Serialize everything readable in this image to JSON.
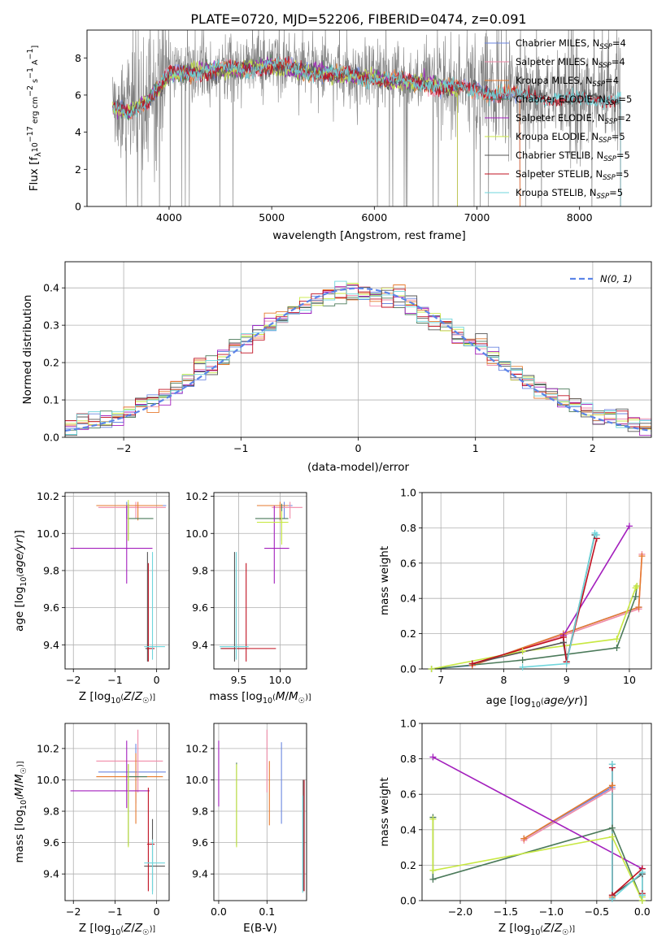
{
  "figure_title": "PLATE=0720, MJD=52206, FIBERID=0474, z=0.091",
  "colors": {
    "Chabrier MILES": "#6b86e0",
    "Salpeter MILES": "#f08aa8",
    "Kroupa MILES": "#e67a2e",
    "Chabrier ELODIE": "#4b7a5a",
    "Salpeter ELODIE": "#a31fbd",
    "Kroupa ELODIE": "#c8e843",
    "Chabrier STELIB": "#555555",
    "Salpeter STELIB": "#c01020",
    "Kroupa STELIB": "#6fd6dc",
    "data": "#808080",
    "normal": "#5b84e8"
  },
  "chart_data": [
    {
      "id": "spectrum",
      "type": "line",
      "title": "PLATE=0720, MJD=52206, FIBERID=0474, z=0.091",
      "xlabel": "wavelength [Angstrom, rest frame]",
      "ylabel": "Flux [f_λ10^-17 erg cm^-2 s^-1 A^-1]",
      "xlim": [
        3200,
        8700
      ],
      "ylim": [
        0,
        9.5
      ],
      "xticks": [
        4000,
        5000,
        6000,
        7000,
        8000
      ],
      "yticks": [
        0,
        2,
        4,
        6,
        8
      ],
      "grid": false,
      "legend_position": "right",
      "legend": [
        {
          "text": "Chabrier MILES, N",
          "sub": "SSP",
          "tail": "=4"
        },
        {
          "text": "Salpeter MILES, N",
          "sub": "SSP",
          "tail": "=4"
        },
        {
          "text": "Kroupa MILES, N",
          "sub": "SSP",
          "tail": "=4"
        },
        {
          "text": "Chabrier ELODIE, N",
          "sub": "SSP",
          "tail": "=5"
        },
        {
          "text": "Salpeter ELODIE, N",
          "sub": "SSP",
          "tail": "=2"
        },
        {
          "text": "Kroupa ELODIE, N",
          "sub": "SSP",
          "tail": "=5"
        },
        {
          "text": "Chabrier STELIB, N",
          "sub": "SSP",
          "tail": "=5"
        },
        {
          "text": "Salpeter STELIB, N",
          "sub": "SSP",
          "tail": "=5"
        },
        {
          "text": "Kroupa STELIB, N",
          "sub": "SSP",
          "tail": "=5"
        }
      ],
      "continuum": [
        [
          3450,
          5.5
        ],
        [
          3600,
          5.2
        ],
        [
          3800,
          5.9
        ],
        [
          4000,
          7.3
        ],
        [
          4300,
          7.5
        ],
        [
          4700,
          7.6
        ],
        [
          5000,
          7.8
        ],
        [
          5300,
          7.5
        ],
        [
          5600,
          7.35
        ],
        [
          6000,
          7.1
        ],
        [
          6300,
          6.95
        ],
        [
          6600,
          6.7
        ],
        [
          7000,
          6.45
        ],
        [
          7400,
          6.15
        ],
        [
          7800,
          6.0
        ],
        [
          8100,
          5.9
        ],
        [
          8400,
          6.0
        ]
      ],
      "model_range": {
        "MILES": [
          3450,
          7420
        ],
        "ELODIE": [
          3450,
          6810
        ],
        "STELIB": [
          3450,
          8400
        ]
      },
      "data_range": [
        3450,
        8400
      ]
    },
    {
      "id": "residuals",
      "type": "histogram",
      "xlabel": "(data-model)/error",
      "ylabel": "Normed distribution",
      "xlim": [
        -2.5,
        2.5
      ],
      "ylim": [
        0,
        0.47
      ],
      "xticks": [
        -2,
        -1,
        0,
        1,
        2
      ],
      "yticks": [
        0.0,
        0.1,
        0.2,
        0.3,
        0.4
      ],
      "grid": true,
      "legend_position": "top-right",
      "normal_curve": {
        "label": "N(0, 1)",
        "mean": 0,
        "sigma": 1
      },
      "bins": 50
    },
    {
      "id": "age-vs-Z",
      "type": "errorbar",
      "xlabel": "Z [log10(Z/Z☉)]",
      "ylabel": "age [log10(age/yr)]",
      "xlim": [
        -2.2,
        0.3
      ],
      "ylim": [
        9.27,
        10.22
      ],
      "xticks": [
        -2,
        -1,
        0
      ],
      "yticks": [
        9.4,
        9.6,
        9.8,
        10.0,
        10.2
      ],
      "grid": true,
      "series": [
        {
          "model": "Chabrier MILES",
          "x": -0.72,
          "xerr": [
            0.72,
            0.95
          ],
          "y": 10.15,
          "yerr": [
            0.07,
            0.02
          ]
        },
        {
          "model": "Salpeter MILES",
          "x": -0.5,
          "xerr": [
            0.9,
            0.72
          ],
          "y": 10.14,
          "yerr": [
            0.06,
            0.03
          ]
        },
        {
          "model": "Kroupa MILES",
          "x": -0.45,
          "xerr": [
            1.0,
            0.6
          ],
          "y": 10.15,
          "yerr": [
            0.08,
            0.02
          ]
        },
        {
          "model": "Chabrier ELODIE",
          "x": -0.68,
          "xerr": [
            0.02,
            0.6
          ],
          "y": 10.08,
          "yerr": [
            0.12,
            0.08
          ]
        },
        {
          "model": "Salpeter ELODIE",
          "x": -0.72,
          "xerr": [
            1.35,
            0.62
          ],
          "y": 9.92,
          "yerr": [
            0.19,
            0.23
          ]
        },
        {
          "model": "Kroupa ELODIE",
          "x": -0.68,
          "xerr": [
            0.02,
            0.0
          ],
          "y": 10.08,
          "yerr": [
            0.12,
            0.1
          ]
        },
        {
          "model": "Chabrier STELIB",
          "x": -0.22,
          "xerr": [
            0.05,
            0.05
          ],
          "y": 9.38,
          "yerr": [
            0.07,
            0.52
          ]
        },
        {
          "model": "Salpeter STELIB",
          "x": -0.2,
          "xerr": [
            0.03,
            0.15
          ],
          "y": 9.38,
          "yerr": [
            0.07,
            0.46
          ]
        },
        {
          "model": "Kroupa STELIB",
          "x": -0.1,
          "xerr": [
            0.2,
            0.3
          ],
          "y": 9.39,
          "yerr": [
            0.07,
            0.51
          ]
        }
      ]
    },
    {
      "id": "age-vs-mass",
      "type": "errorbar",
      "xlabel": "mass [log10(M/M☉)]",
      "ylabel": "",
      "xlim": [
        9.2,
        10.32
      ],
      "ylim": [
        9.27,
        10.22
      ],
      "xticks": [
        9.5,
        10.0
      ],
      "yticks": [
        9.4,
        9.6,
        9.8,
        10.0,
        10.2
      ],
      "grid": true,
      "series": [
        {
          "model": "Chabrier MILES",
          "x": 10.05,
          "xerr": [
            0.22,
            0.1
          ],
          "y": 10.15,
          "yerr": [
            0.07,
            0.02
          ]
        },
        {
          "model": "Salpeter MILES",
          "x": 10.12,
          "xerr": [
            0.22,
            0.15
          ],
          "y": 10.14,
          "yerr": [
            0.06,
            0.03
          ]
        },
        {
          "model": "Kroupa MILES",
          "x": 10.0,
          "xerr": [
            0.28,
            0.1
          ],
          "y": 10.15,
          "yerr": [
            0.08,
            0.02
          ]
        },
        {
          "model": "Chabrier ELODIE",
          "x": 10.02,
          "xerr": [
            0.32,
            0.08
          ],
          "y": 10.08,
          "yerr": [
            0.12,
            0.08
          ]
        },
        {
          "model": "Salpeter ELODIE",
          "x": 9.93,
          "xerr": [
            0.12,
            0.18
          ],
          "y": 9.92,
          "yerr": [
            0.19,
            0.23
          ]
        },
        {
          "model": "Kroupa ELODIE",
          "x": 10.02,
          "xerr": [
            0.3,
            0.08
          ],
          "y": 10.06,
          "yerr": [
            0.12,
            0.06
          ]
        },
        {
          "model": "Chabrier STELIB",
          "x": 9.45,
          "xerr": [
            0.17,
            0.12
          ],
          "y": 9.38,
          "yerr": [
            0.07,
            0.52
          ]
        },
        {
          "model": "Salpeter STELIB",
          "x": 9.59,
          "xerr": [
            0.3,
            0.36
          ],
          "y": 9.38,
          "yerr": [
            0.07,
            0.46
          ]
        },
        {
          "model": "Kroupa STELIB",
          "x": 9.47,
          "xerr": [
            0.2,
            0.15
          ],
          "y": 9.39,
          "yerr": [
            0.07,
            0.51
          ]
        }
      ]
    },
    {
      "id": "weight-vs-age",
      "type": "line",
      "xlabel": "age [log10(age/yr)]",
      "ylabel": "mass weight",
      "xlim": [
        6.7,
        10.35
      ],
      "ylim": [
        0,
        1.0
      ],
      "xticks": [
        7,
        8,
        9,
        10
      ],
      "yticks": [
        0.0,
        0.2,
        0.4,
        0.6,
        0.8,
        1.0
      ],
      "grid": true,
      "series": [
        {
          "model": "Chabrier MILES",
          "x": [
            6.85,
            7.5,
            8.95,
            10.15
          ],
          "y": [
            0.0,
            0.02,
            0.2,
            0.35
          ]
        },
        {
          "model": "Salpeter MILES",
          "x": [
            7.5,
            8.95,
            10.15,
            10.2
          ],
          "y": [
            0.02,
            0.19,
            0.34,
            0.65
          ]
        },
        {
          "model": "Kroupa MILES",
          "x": [
            7.5,
            8.95,
            10.15,
            10.2
          ],
          "y": [
            0.02,
            0.2,
            0.35,
            0.64
          ]
        },
        {
          "model": "Chabrier ELODIE",
          "x": [
            6.85,
            8.3,
            9.8,
            10.1,
            10.12
          ],
          "y": [
            0.0,
            0.05,
            0.12,
            0.41,
            0.47
          ]
        },
        {
          "model": "Salpeter ELODIE",
          "x": [
            8.95,
            10.0
          ],
          "y": [
            0.19,
            0.81
          ]
        },
        {
          "model": "Kroupa ELODIE",
          "x": [
            6.85,
            8.3,
            9.8,
            10.1,
            10.12
          ],
          "y": [
            0.0,
            0.1,
            0.17,
            0.46,
            0.47
          ]
        },
        {
          "model": "Chabrier STELIB",
          "x": [
            7.5,
            8.95,
            9.0,
            9.45
          ],
          "y": [
            0.03,
            0.15,
            0.04,
            0.76
          ]
        },
        {
          "model": "Salpeter STELIB",
          "x": [
            7.5,
            8.95,
            9.0,
            9.48
          ],
          "y": [
            0.03,
            0.18,
            0.04,
            0.74
          ]
        },
        {
          "model": "Kroupa STELIB",
          "x": [
            8.3,
            9.0,
            9.45,
            9.48
          ],
          "y": [
            0.01,
            0.03,
            0.77,
            0.76
          ]
        }
      ]
    },
    {
      "id": "mass-vs-Z",
      "type": "errorbar",
      "xlabel": "Z [log10(Z/Z☉)]",
      "ylabel": "mass [log10(M/M☉)]",
      "xlim": [
        -2.2,
        0.3
      ],
      "ylim": [
        9.23,
        10.36
      ],
      "xticks": [
        -2,
        -1,
        0
      ],
      "yticks": [
        9.4,
        9.6,
        9.8,
        10.0,
        10.2
      ],
      "grid": true,
      "series": [
        {
          "model": "Chabrier MILES",
          "x": -0.5,
          "xerr": [
            0.9,
            0.72
          ],
          "y": 10.05,
          "yerr": [
            0.2,
            0.18
          ]
        },
        {
          "model": "Salpeter MILES",
          "x": -0.45,
          "xerr": [
            1.0,
            0.6
          ],
          "y": 10.12,
          "yerr": [
            0.2,
            0.2
          ]
        },
        {
          "model": "Kroupa MILES",
          "x": -0.5,
          "xerr": [
            0.95,
            0.65
          ],
          "y": 10.02,
          "yerr": [
            0.3,
            0.15
          ]
        },
        {
          "model": "Chabrier ELODIE",
          "x": -0.68,
          "xerr": [
            0.02,
            0.45
          ],
          "y": 10.02,
          "yerr": [
            0.44,
            0.08
          ]
        },
        {
          "model": "Salpeter ELODIE",
          "x": -0.72,
          "xerr": [
            1.35,
            0.55
          ],
          "y": 9.93,
          "yerr": [
            0.11,
            0.32
          ]
        },
        {
          "model": "Kroupa ELODIE",
          "x": -0.68,
          "xerr": [
            0.02,
            0.02
          ],
          "y": 10.0,
          "yerr": [
            0.43,
            0.1
          ]
        },
        {
          "model": "Chabrier STELIB",
          "x": -0.1,
          "xerr": [
            0.2,
            0.3
          ],
          "y": 9.45,
          "yerr": [
            0.16,
            0.3
          ]
        },
        {
          "model": "Salpeter STELIB",
          "x": -0.2,
          "xerr": [
            0.03,
            0.15
          ],
          "y": 9.59,
          "yerr": [
            0.3,
            0.36
          ]
        },
        {
          "model": "Kroupa STELIB",
          "x": -0.1,
          "xerr": [
            0.2,
            0.3
          ],
          "y": 9.47,
          "yerr": [
            0.2,
            0.15
          ]
        }
      ]
    },
    {
      "id": "mass-vs-EBV",
      "type": "errorbar",
      "xlabel": "E(B-V)",
      "ylabel": "",
      "xlim": [
        -0.01,
        0.182
      ],
      "ylim": [
        9.23,
        10.36
      ],
      "xticks": [
        0.0,
        0.1
      ],
      "yticks": [
        9.4,
        9.6,
        9.8,
        10.0,
        10.2
      ],
      "grid": true,
      "series": [
        {
          "model": "Chabrier MILES",
          "x": 0.13,
          "y": 10.05,
          "yerr": [
            0.33,
            0.19
          ]
        },
        {
          "model": "Salpeter MILES",
          "x": 0.1,
          "y": 10.12,
          "yerr": [
            0.2,
            0.2
          ]
        },
        {
          "model": "Kroupa MILES",
          "x": 0.105,
          "y": 10.02,
          "yerr": [
            0.31,
            0.1
          ]
        },
        {
          "model": "Chabrier ELODIE",
          "x": 0.037,
          "y": 10.02,
          "yerr": [
            0.44,
            0.09
          ]
        },
        {
          "model": "Salpeter ELODIE",
          "x": 0.0,
          "y": 10.03,
          "yerr": [
            0.2,
            0.22
          ]
        },
        {
          "model": "Kroupa ELODIE",
          "x": 0.037,
          "y": 10.0,
          "yerr": [
            0.43,
            0.1
          ]
        },
        {
          "model": "Chabrier STELIB",
          "x": 0.175,
          "y": 9.65,
          "yerr": [
            0.36,
            0.35
          ]
        },
        {
          "model": "Salpeter STELIB",
          "x": 0.177,
          "y": 9.59,
          "yerr": [
            0.3,
            0.41
          ]
        },
        {
          "model": "Kroupa STELIB",
          "x": 0.174,
          "y": 9.58,
          "yerr": [
            0.3,
            0.32
          ]
        }
      ]
    },
    {
      "id": "weight-vs-Z",
      "type": "line",
      "xlabel": "Z [log10(Z/Z☉)]",
      "ylabel": "mass weight",
      "xlim": [
        -2.42,
        0.1
      ],
      "ylim": [
        0,
        1.0
      ],
      "xticks": [
        -2.0,
        -1.5,
        -1.0,
        -0.5,
        0.0
      ],
      "yticks": [
        0.0,
        0.2,
        0.4,
        0.6,
        0.8,
        1.0
      ],
      "grid": true,
      "series": [
        {
          "model": "Chabrier MILES",
          "x": [
            -1.3,
            -0.33,
            -0.33
          ],
          "y": [
            0.35,
            0.64,
            0.02
          ]
        },
        {
          "model": "Salpeter MILES",
          "x": [
            -1.3,
            -0.33,
            -0.33
          ],
          "y": [
            0.34,
            0.63,
            0.02
          ]
        },
        {
          "model": "Kroupa MILES",
          "x": [
            -1.3,
            -0.33,
            -0.33
          ],
          "y": [
            0.35,
            0.65,
            0.02
          ]
        },
        {
          "model": "Chabrier ELODIE",
          "x": [
            -2.3,
            -2.3,
            -0.33,
            0.0,
            0.0
          ],
          "y": [
            0.47,
            0.12,
            0.41,
            0.0,
            0.0
          ]
        },
        {
          "model": "Salpeter ELODIE",
          "x": [
            -2.3,
            0.0
          ],
          "y": [
            0.81,
            0.18
          ]
        },
        {
          "model": "Kroupa ELODIE",
          "x": [
            -2.3,
            -2.3,
            -0.33,
            0.0,
            0.0
          ],
          "y": [
            0.46,
            0.17,
            0.36,
            0.0,
            0.02
          ]
        },
        {
          "model": "Chabrier STELIB",
          "x": [
            -0.33,
            -0.33,
            0.0,
            0.0
          ],
          "y": [
            0.77,
            0.03,
            0.15,
            0.03
          ]
        },
        {
          "model": "Salpeter STELIB",
          "x": [
            -0.33,
            -0.33,
            0.0,
            0.0
          ],
          "y": [
            0.75,
            0.03,
            0.18,
            0.04
          ]
        },
        {
          "model": "Kroupa STELIB",
          "x": [
            -0.33,
            -0.33,
            0.0,
            0.0
          ],
          "y": [
            0.77,
            0.01,
            0.16,
            0.03
          ]
        }
      ]
    }
  ]
}
